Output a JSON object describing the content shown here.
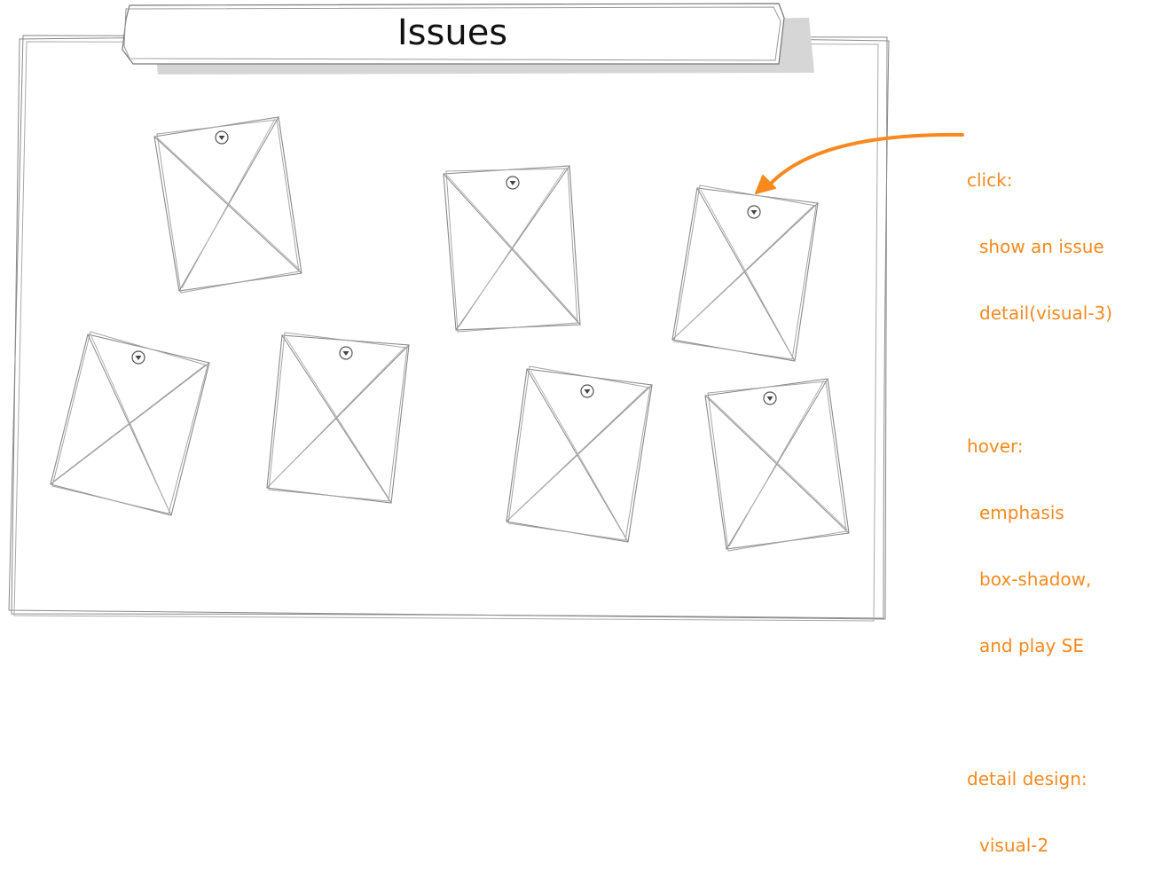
{
  "page": {
    "title": "Issues"
  },
  "cards": [
    {
      "name": "issue-card-1",
      "marker_icon": "dropdown-marker-icon"
    },
    {
      "name": "issue-card-2",
      "marker_icon": "dropdown-marker-icon"
    },
    {
      "name": "issue-card-3",
      "marker_icon": "dropdown-marker-icon"
    },
    {
      "name": "issue-card-4",
      "marker_icon": "dropdown-marker-icon"
    },
    {
      "name": "issue-card-5",
      "marker_icon": "dropdown-marker-icon"
    },
    {
      "name": "issue-card-6",
      "marker_icon": "dropdown-marker-icon"
    },
    {
      "name": "issue-card-7",
      "marker_icon": "dropdown-marker-icon"
    }
  ],
  "annotation": {
    "color": "#f7891f",
    "arrow_icon": "curved-arrow-icon",
    "click_label": "click:",
    "click_line_1": "show an issue",
    "click_line_2": "detail(visual-3)",
    "hover_label": "hover:",
    "hover_line_1": "emphasis",
    "hover_line_2": "box-shadow,",
    "hover_line_3": "and play SE",
    "detail_label": "detail design:",
    "detail_line_1": "visual-2"
  },
  "colors": {
    "sketch_stroke": "#8a8a8a",
    "shadow": "#d6d6d6",
    "title_text": "#111111"
  }
}
